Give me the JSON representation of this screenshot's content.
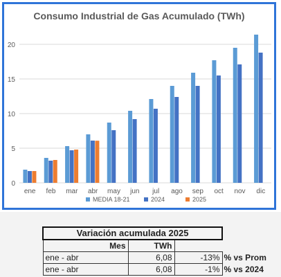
{
  "chart_data": {
    "type": "bar",
    "title": "Consumo Industrial de Gas Acumulado (TWh)",
    "xlabel": "",
    "ylabel": "",
    "ylim": [
      0,
      22
    ],
    "yticks": [
      0,
      5,
      10,
      15,
      20
    ],
    "grid": true,
    "legend_position": "bottom",
    "categories": [
      "ene",
      "feb",
      "mar",
      "abr",
      "may",
      "jun",
      "jul",
      "ago",
      "sep",
      "oct",
      "nov",
      "dic"
    ],
    "series": [
      {
        "name": "MEDIA 18-21",
        "color": "#5b9bd5",
        "values": [
          1.9,
          3.6,
          5.3,
          7.0,
          8.7,
          10.4,
          12.1,
          14.0,
          15.9,
          17.7,
          19.5,
          21.4
        ]
      },
      {
        "name": "2024",
        "color": "#4472c4",
        "values": [
          1.7,
          3.2,
          4.7,
          6.1,
          7.6,
          9.2,
          10.7,
          12.4,
          14.0,
          15.5,
          17.1,
          18.8
        ]
      },
      {
        "name": "2025",
        "color": "#ed7d31",
        "values": [
          1.7,
          3.3,
          4.8,
          6.08,
          null,
          null,
          null,
          null,
          null,
          null,
          null,
          null
        ]
      }
    ]
  },
  "table": {
    "title": "Variación acumulada 2025",
    "headers": [
      "Mes",
      "TWh"
    ],
    "rows": [
      {
        "period": "ene - abr",
        "twh": "6,08",
        "pct": "-13%",
        "label": "% vs Prom"
      },
      {
        "period": "ene - abr",
        "twh": "6,08",
        "pct": "-1%",
        "label": "% vs 2024"
      }
    ]
  }
}
